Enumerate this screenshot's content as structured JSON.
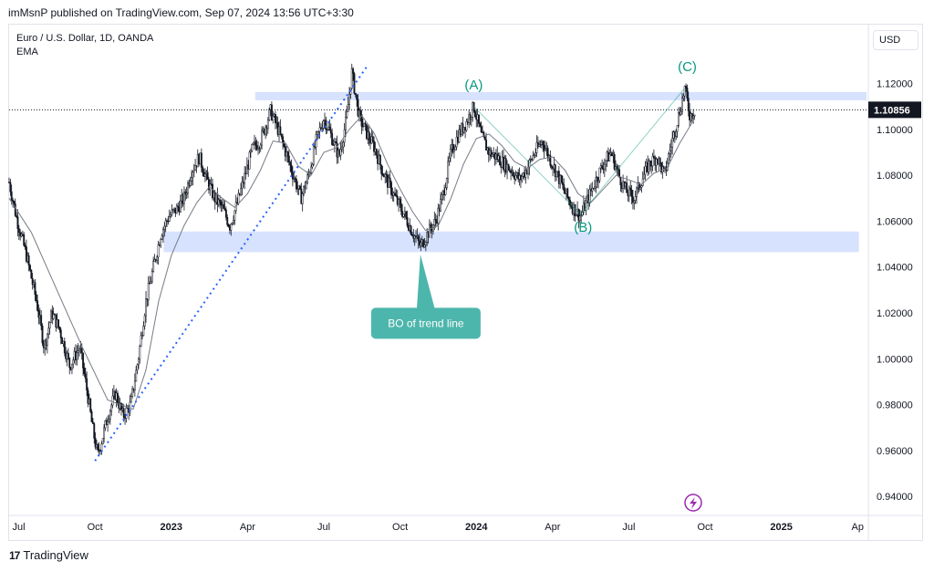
{
  "header": {
    "published": "imMsnP published on TradingView.com, Sep 07, 2024 13:56 UTC+3:30"
  },
  "legend": {
    "symbol": "Euro / U.S. Dollar, 1D, OANDA",
    "indicator": "EMA"
  },
  "currency_button": "USD",
  "brand": {
    "logo": "17",
    "name": "TradingView"
  },
  "colors": {
    "candle": "#131722",
    "ema": "#787b86",
    "zone": "#c9d8fd",
    "trendline": "#2962ff",
    "wave": "#089981",
    "callout": "#4db6ac",
    "badge": "#9c27b0"
  },
  "chart_data": {
    "type": "line",
    "title": "Euro / U.S. Dollar, 1D, OANDA",
    "ylabel": "USD",
    "ylim": [
      0.9325,
      1.1445
    ],
    "y_ticks": [
      "1.12000",
      "1.10000",
      "1.08000",
      "1.06000",
      "1.04000",
      "1.02000",
      "1.00000",
      "0.98000",
      "0.96000",
      "0.94000"
    ],
    "y_tick_values": [
      1.12,
      1.1,
      1.08,
      1.06,
      1.04,
      1.02,
      1.0,
      0.98,
      0.96,
      0.94
    ],
    "x_ticks": [
      {
        "label": "Jul",
        "t": 0.5,
        "bold": false
      },
      {
        "label": "Oct",
        "t": 3.5,
        "bold": false
      },
      {
        "label": "2023",
        "t": 6.5,
        "bold": true
      },
      {
        "label": "Apr",
        "t": 9.5,
        "bold": false
      },
      {
        "label": "Jul",
        "t": 12.5,
        "bold": false
      },
      {
        "label": "Oct",
        "t": 15.5,
        "bold": false
      },
      {
        "label": "2024",
        "t": 18.5,
        "bold": true
      },
      {
        "label": "Apr",
        "t": 21.5,
        "bold": false
      },
      {
        "label": "Jul",
        "t": 24.5,
        "bold": false
      },
      {
        "label": "Oct",
        "t": 27.5,
        "bold": false
      },
      {
        "label": "2025",
        "t": 30.5,
        "bold": true
      },
      {
        "label": "Ap",
        "t": 33.5,
        "bold": false
      }
    ],
    "x_range": [
      0.12,
      33.85
    ],
    "last_price": {
      "value": 1.10856,
      "label": "1.10856"
    },
    "price_path": [
      [
        0.12,
        1.077
      ],
      [
        0.4,
        1.062
      ],
      [
        0.8,
        1.045
      ],
      [
        1.2,
        1.025
      ],
      [
        1.5,
        1.005
      ],
      [
        1.8,
        1.02
      ],
      [
        2.1,
        1.013
      ],
      [
        2.5,
        0.997
      ],
      [
        2.9,
        1.005
      ],
      [
        3.2,
        0.985
      ],
      [
        3.4,
        0.97
      ],
      [
        3.6,
        0.958
      ],
      [
        3.8,
        0.966
      ],
      [
        4.0,
        0.975
      ],
      [
        4.3,
        0.985
      ],
      [
        4.6,
        0.975
      ],
      [
        4.9,
        0.98
      ],
      [
        5.2,
        1.0
      ],
      [
        5.5,
        1.025
      ],
      [
        5.8,
        1.04
      ],
      [
        6.1,
        1.055
      ],
      [
        6.4,
        1.062
      ],
      [
        6.7,
        1.065
      ],
      [
        7.0,
        1.07
      ],
      [
        7.3,
        1.082
      ],
      [
        7.6,
        1.088
      ],
      [
        7.9,
        1.078
      ],
      [
        8.2,
        1.07
      ],
      [
        8.5,
        1.066
      ],
      [
        8.8,
        1.058
      ],
      [
        9.1,
        1.068
      ],
      [
        9.4,
        1.08
      ],
      [
        9.7,
        1.092
      ],
      [
        10.0,
        1.095
      ],
      [
        10.4,
        1.108
      ],
      [
        10.7,
        1.1
      ],
      [
        11.0,
        1.09
      ],
      [
        11.3,
        1.08
      ],
      [
        11.6,
        1.07
      ],
      [
        11.9,
        1.08
      ],
      [
        12.2,
        1.095
      ],
      [
        12.5,
        1.105
      ],
      [
        12.8,
        1.097
      ],
      [
        13.1,
        1.088
      ],
      [
        13.4,
        1.105
      ],
      [
        13.6,
        1.125
      ],
      [
        13.9,
        1.105
      ],
      [
        14.2,
        1.098
      ],
      [
        14.5,
        1.092
      ],
      [
        14.8,
        1.082
      ],
      [
        15.1,
        1.075
      ],
      [
        15.4,
        1.068
      ],
      [
        15.7,
        1.062
      ],
      [
        16.0,
        1.055
      ],
      [
        16.3,
        1.049
      ],
      [
        16.6,
        1.055
      ],
      [
        16.9,
        1.06
      ],
      [
        17.2,
        1.072
      ],
      [
        17.5,
        1.09
      ],
      [
        17.8,
        1.098
      ],
      [
        18.1,
        1.103
      ],
      [
        18.4,
        1.11
      ],
      [
        18.7,
        1.097
      ],
      [
        19.0,
        1.09
      ],
      [
        19.3,
        1.088
      ],
      [
        19.6,
        1.085
      ],
      [
        19.9,
        1.082
      ],
      [
        20.2,
        1.078
      ],
      [
        20.5,
        1.083
      ],
      [
        20.8,
        1.09
      ],
      [
        21.1,
        1.095
      ],
      [
        21.4,
        1.087
      ],
      [
        21.7,
        1.08
      ],
      [
        22.0,
        1.072
      ],
      [
        22.3,
        1.066
      ],
      [
        22.6,
        1.062
      ],
      [
        22.9,
        1.07
      ],
      [
        23.2,
        1.078
      ],
      [
        23.5,
        1.085
      ],
      [
        23.8,
        1.09
      ],
      [
        24.1,
        1.08
      ],
      [
        24.4,
        1.073
      ],
      [
        24.7,
        1.07
      ],
      [
        25.0,
        1.078
      ],
      [
        25.3,
        1.085
      ],
      [
        25.6,
        1.088
      ],
      [
        25.9,
        1.08
      ],
      [
        26.2,
        1.095
      ],
      [
        26.5,
        1.108
      ],
      [
        26.7,
        1.118
      ],
      [
        26.9,
        1.106
      ],
      [
        27.1,
        1.10856
      ]
    ],
    "ema_path": [
      [
        0.12,
        1.07
      ],
      [
        1.0,
        1.055
      ],
      [
        2.0,
        1.03
      ],
      [
        3.0,
        1.005
      ],
      [
        4.0,
        0.982
      ],
      [
        5.0,
        0.978
      ],
      [
        5.5,
        0.995
      ],
      [
        6.0,
        1.025
      ],
      [
        6.5,
        1.045
      ],
      [
        7.0,
        1.058
      ],
      [
        7.5,
        1.068
      ],
      [
        8.0,
        1.075
      ],
      [
        8.5,
        1.07
      ],
      [
        9.0,
        1.066
      ],
      [
        9.5,
        1.072
      ],
      [
        10.0,
        1.082
      ],
      [
        10.5,
        1.095
      ],
      [
        11.0,
        1.094
      ],
      [
        11.5,
        1.084
      ],
      [
        12.0,
        1.08
      ],
      [
        12.5,
        1.09
      ],
      [
        13.0,
        1.092
      ],
      [
        13.5,
        1.1
      ],
      [
        14.0,
        1.106
      ],
      [
        14.5,
        1.098
      ],
      [
        15.0,
        1.085
      ],
      [
        15.5,
        1.074
      ],
      [
        16.0,
        1.064
      ],
      [
        16.5,
        1.056
      ],
      [
        17.0,
        1.058
      ],
      [
        17.5,
        1.07
      ],
      [
        18.0,
        1.085
      ],
      [
        18.5,
        1.096
      ],
      [
        19.0,
        1.098
      ],
      [
        19.5,
        1.093
      ],
      [
        20.0,
        1.086
      ],
      [
        20.5,
        1.083
      ],
      [
        21.0,
        1.087
      ],
      [
        21.5,
        1.088
      ],
      [
        22.0,
        1.082
      ],
      [
        22.5,
        1.072
      ],
      [
        23.0,
        1.068
      ],
      [
        23.5,
        1.074
      ],
      [
        24.0,
        1.08
      ],
      [
        24.5,
        1.078
      ],
      [
        25.0,
        1.076
      ],
      [
        25.5,
        1.081
      ],
      [
        26.0,
        1.083
      ],
      [
        26.5,
        1.094
      ],
      [
        27.1,
        1.105
      ]
    ],
    "zones": [
      {
        "name": "resistance-zone",
        "t0": 9.8,
        "t1": 33.85,
        "y_low": 1.1127,
        "y_high": 1.1163
      },
      {
        "name": "support-zone",
        "t0": 6.2,
        "t1": 33.55,
        "y_low": 1.0465,
        "y_high": 1.0555
      }
    ],
    "trendline": {
      "t0": 3.5,
      "y0": 0.9555,
      "t1": 14.2,
      "y1": 1.1275
    },
    "wave_lines": [
      [
        18.4,
        1.11
      ],
      [
        22.6,
        1.063
      ],
      [
        26.7,
        1.118
      ]
    ],
    "wave_labels": [
      {
        "label": "(A)",
        "t": 18.4,
        "y": 1.1175
      },
      {
        "label": "(B)",
        "t": 22.7,
        "y": 1.0555
      },
      {
        "label": "(C)",
        "t": 26.8,
        "y": 1.1255
      }
    ],
    "callout": {
      "text": "BO of trend line",
      "tip_t": 16.3,
      "tip_y": 1.0455,
      "box_y": 1.0155
    }
  }
}
